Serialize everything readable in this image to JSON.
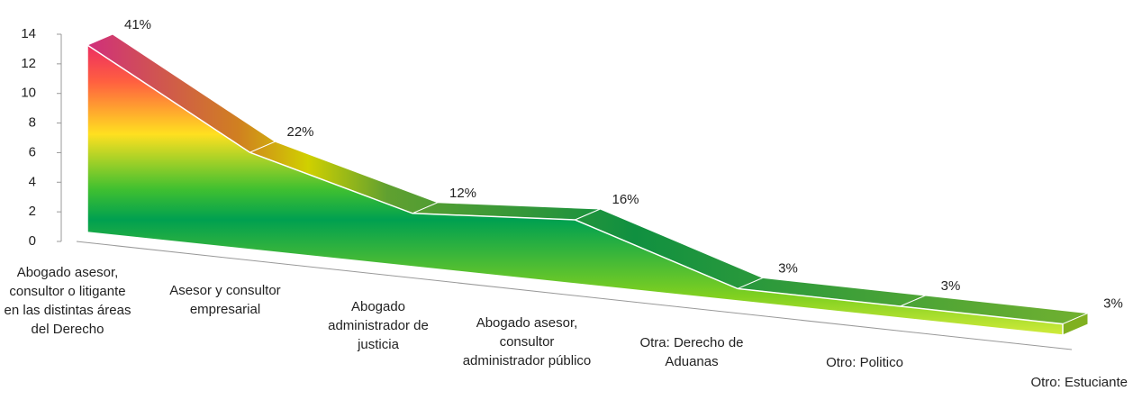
{
  "chart_data": {
    "type": "area",
    "categories": [
      "Abogado asesor, consultor o litigante en las distintas áreas del Derecho",
      "Asesor y consultor empresarial",
      "Abogado administrador de justicia",
      "Abogado asesor, consultor administrador público",
      "Otra: Derecho de Aduanas",
      "Otro: Politico",
      "Otro: Estuciante"
    ],
    "values": [
      13,
      7,
      4,
      5,
      1,
      1,
      1
    ],
    "value_labels": [
      "41%",
      "22%",
      "12%",
      "16%",
      "3%",
      "3%",
      "3%"
    ],
    "ylim": [
      0,
      14
    ],
    "yticks": [
      0,
      2,
      4,
      6,
      8,
      10,
      12,
      14
    ],
    "color": "#00a040"
  }
}
